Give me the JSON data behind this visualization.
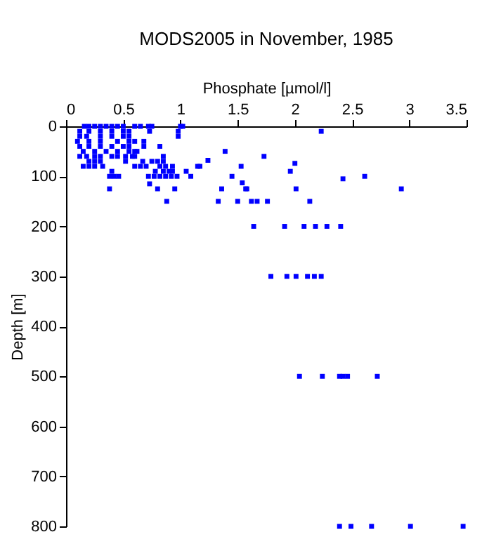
{
  "chart_data": {
    "type": "scatter",
    "title": "MODS2005 in November, 1985",
    "xlabel": "Phosphate [µmol/l]",
    "ylabel": "Depth [m]",
    "xlim": [
      0,
      3.5
    ],
    "xticks": [
      0,
      0.5,
      1,
      1.5,
      2,
      2.5,
      3,
      3.5
    ],
    "ylim": [
      800,
      0
    ],
    "yticks": [
      0,
      100,
      200,
      300,
      400,
      500,
      600,
      700,
      800
    ],
    "grid": false,
    "marker": "square",
    "series": [
      {
        "color": "#0000ff",
        "x": [
          0.16,
          0.2,
          0.25,
          0.3,
          0.35,
          0.4,
          0.45,
          0.5,
          0.6,
          0.65,
          0.72,
          0.75,
          1.0,
          1.02,
          0.12,
          0.2,
          0.3,
          0.4,
          0.5,
          0.55,
          0.73,
          0.98,
          0.12,
          0.18,
          0.3,
          0.4,
          0.5,
          0.55,
          0.98,
          0.1,
          0.2,
          0.3,
          0.45,
          0.55,
          0.6,
          0.68,
          0.12,
          0.2,
          0.3,
          0.4,
          0.5,
          0.55,
          0.68,
          0.82,
          0.15,
          0.25,
          0.35,
          0.45,
          0.55,
          0.6,
          0.62,
          0.12,
          0.18,
          0.25,
          0.3,
          0.4,
          0.45,
          0.52,
          0.58,
          0.6,
          0.85,
          0.2,
          0.25,
          0.3,
          0.52,
          0.67,
          0.75,
          0.8,
          0.85,
          0.15,
          0.2,
          0.25,
          0.32,
          0.6,
          0.65,
          0.7,
          0.82,
          0.87,
          0.93,
          1.17,
          0.4,
          0.78,
          0.85,
          0.9,
          0.93,
          1.05,
          0.38,
          0.42,
          0.46,
          0.72,
          0.77,
          0.82,
          0.87,
          0.92,
          0.97,
          1.09,
          1.45,
          0.73,
          0.38,
          0.8,
          0.95,
          1.36,
          1.58,
          0.88,
          1.33,
          1.5,
          2.23,
          1.39,
          1.73,
          1.24,
          1.15,
          1.53,
          2.0,
          1.96,
          2.42,
          2.61,
          1.54,
          1.57,
          2.01,
          2.93,
          1.62,
          1.67,
          1.76,
          2.13,
          1.64,
          1.91,
          2.08,
          2.18,
          2.28,
          2.4,
          1.79,
          1.93,
          2.01,
          2.11,
          2.17,
          2.23,
          2.04,
          2.24,
          2.39,
          2.42,
          2.46,
          2.72,
          2.39,
          2.49,
          2.67,
          3.01,
          3.47
        ],
        "values": [
          0,
          0,
          0,
          0,
          0,
          0,
          0,
          0,
          0,
          0,
          0,
          0,
          0,
          0,
          10,
          10,
          10,
          10,
          10,
          10,
          10,
          10,
          20,
          20,
          20,
          20,
          20,
          20,
          20,
          30,
          30,
          30,
          30,
          30,
          30,
          30,
          40,
          40,
          40,
          40,
          40,
          40,
          40,
          40,
          50,
          50,
          50,
          50,
          50,
          50,
          50,
          60,
          60,
          60,
          60,
          60,
          60,
          60,
          60,
          60,
          60,
          70,
          70,
          70,
          70,
          70,
          70,
          70,
          70,
          80,
          80,
          80,
          80,
          80,
          80,
          80,
          80,
          80,
          80,
          80,
          90,
          90,
          90,
          90,
          90,
          90,
          100,
          100,
          100,
          100,
          100,
          100,
          100,
          100,
          100,
          100,
          100,
          115,
          125,
          125,
          125,
          125,
          125,
          150,
          150,
          150,
          10,
          50,
          60,
          68,
          80,
          80,
          74,
          90,
          105,
          100,
          113,
          125,
          125,
          125,
          150,
          150,
          150,
          150,
          200,
          200,
          200,
          200,
          200,
          200,
          300,
          300,
          300,
          300,
          300,
          300,
          500,
          500,
          500,
          500,
          500,
          500,
          800,
          800,
          800,
          800,
          800
        ]
      }
    ]
  }
}
